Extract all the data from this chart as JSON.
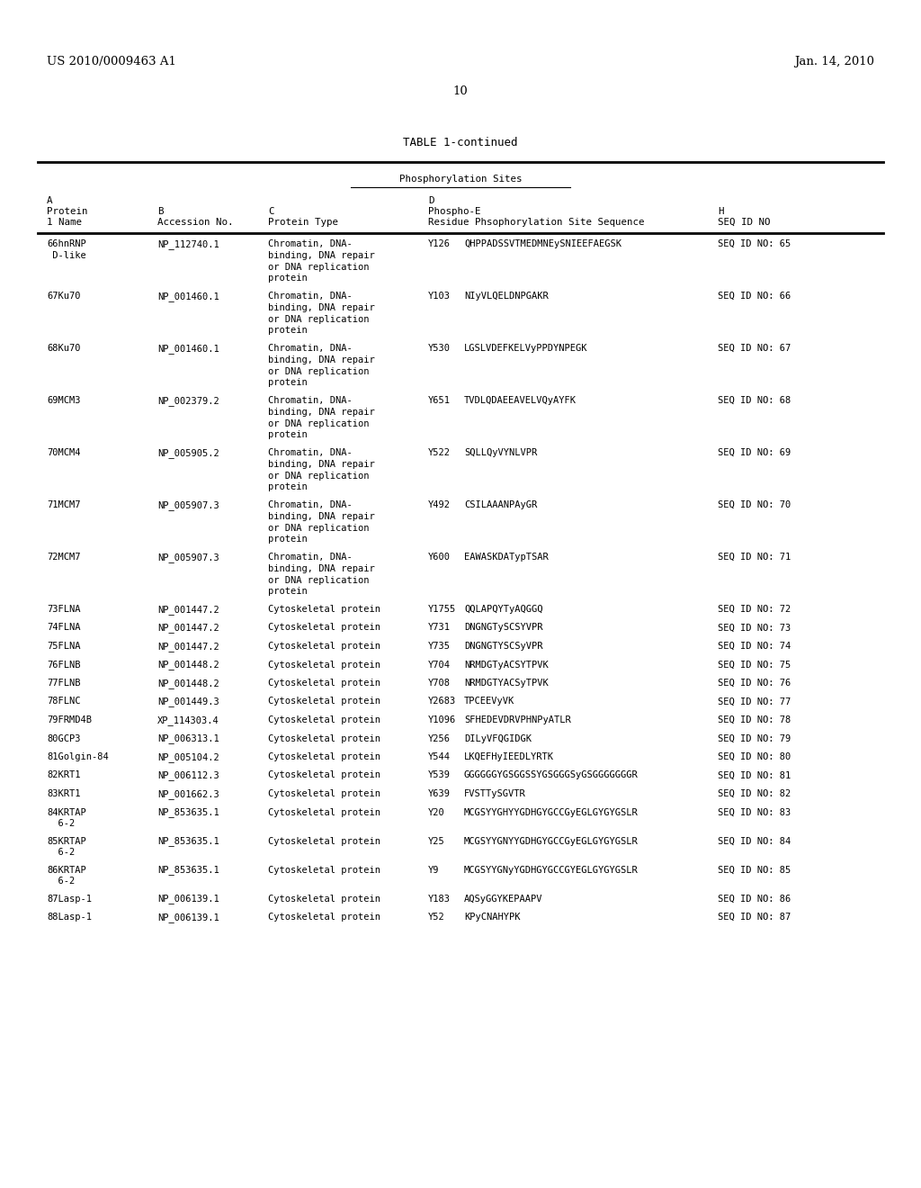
{
  "header_left": "US 2010/0009463 A1",
  "header_right": "Jan. 14, 2010",
  "page_number": "10",
  "table_title": "TABLE 1-continued",
  "table_subtitle": "Phosphorylation Sites",
  "bg_color": "#ffffff",
  "rows": [
    {
      "name": "66hnRNP\n D-like",
      "acc": "NP_112740.1",
      "type": "Chromatin, DNA-\nbinding, DNA repair\nor DNA replication\nprotein",
      "res": "Y126",
      "seq": "QHPPADSSVTMEDMNEySNIEEFAEGSK",
      "seqid": "SEQ ID NO: 65",
      "multiline": true
    },
    {
      "name": "67Ku70",
      "acc": "NP_001460.1",
      "type": "Chromatin, DNA-\nbinding, DNA repair\nor DNA replication\nprotein",
      "res": "Y103",
      "seq": "NIyVLQELDNPGAKR",
      "seqid": "SEQ ID NO: 66",
      "multiline": true
    },
    {
      "name": "68Ku70",
      "acc": "NP_001460.1",
      "type": "Chromatin, DNA-\nbinding, DNA repair\nor DNA replication\nprotein",
      "res": "Y530",
      "seq": "LGSLVDEFKELVyPPDYNPEGK",
      "seqid": "SEQ ID NO: 67",
      "multiline": true
    },
    {
      "name": "69MCM3",
      "acc": "NP_002379.2",
      "type": "Chromatin, DNA-\nbinding, DNA repair\nor DNA replication\nprotein",
      "res": "Y651",
      "seq": "TVDLQDAEEAVELVQyAYFK",
      "seqid": "SEQ ID NO: 68",
      "multiline": true
    },
    {
      "name": "70MCM4",
      "acc": "NP_005905.2",
      "type": "Chromatin, DNA-\nbinding, DNA repair\nor DNA replication\nprotein",
      "res": "Y522",
      "seq": "SQLLQyVYNLVPR",
      "seqid": "SEQ ID NO: 69",
      "multiline": true
    },
    {
      "name": "71MCM7",
      "acc": "NP_005907.3",
      "type": "Chromatin, DNA-\nbinding, DNA repair\nor DNA replication\nprotein",
      "res": "Y492",
      "seq": "CSILAAANPAyGR",
      "seqid": "SEQ ID NO: 70",
      "multiline": true
    },
    {
      "name": "72MCM7",
      "acc": "NP_005907.3",
      "type": "Chromatin, DNA-\nbinding, DNA repair\nor DNA replication\nprotein",
      "res": "Y600",
      "seq": "EAWASKDATypTSAR",
      "seqid": "SEQ ID NO: 71",
      "multiline": true
    },
    {
      "name": "73FLNA",
      "acc": "NP_001447.2",
      "type": "Cytoskeletal protein",
      "res": "Y1755",
      "seq": "QQLAPQYTyAQGGQ",
      "seqid": "SEQ ID NO: 72",
      "multiline": false
    },
    {
      "name": "74FLNA",
      "acc": "NP_001447.2",
      "type": "Cytoskeletal protein",
      "res": "Y731",
      "seq": "DNGNGTySCSYVPR",
      "seqid": "SEQ ID NO: 73",
      "multiline": false
    },
    {
      "name": "75FLNA",
      "acc": "NP_001447.2",
      "type": "Cytoskeletal protein",
      "res": "Y735",
      "seq": "DNGNGTYSCSyVPR",
      "seqid": "SEQ ID NO: 74",
      "multiline": false
    },
    {
      "name": "76FLNB",
      "acc": "NP_001448.2",
      "type": "Cytoskeletal protein",
      "res": "Y704",
      "seq": "NRMDGTyACSYTPVK",
      "seqid": "SEQ ID NO: 75",
      "multiline": false
    },
    {
      "name": "77FLNB",
      "acc": "NP_001448.2",
      "type": "Cytoskeletal protein",
      "res": "Y708",
      "seq": "NRMDGTYACSyTPVK",
      "seqid": "SEQ ID NO: 76",
      "multiline": false
    },
    {
      "name": "78FLNC",
      "acc": "NP_001449.3",
      "type": "Cytoskeletal protein",
      "res": "Y2683",
      "seq": "TPCEEVyVK",
      "seqid": "SEQ ID NO: 77",
      "multiline": false
    },
    {
      "name": "79FRMD4B",
      "acc": "XP_114303.4",
      "type": "Cytoskeletal protein",
      "res": "Y1096",
      "seq": "SFHEDEVDRVPHNPyATLR",
      "seqid": "SEQ ID NO: 78",
      "multiline": false
    },
    {
      "name": "80GCP3",
      "acc": "NP_006313.1",
      "type": "Cytoskeletal protein",
      "res": "Y256",
      "seq": "DILyVFQGIDGK",
      "seqid": "SEQ ID NO: 79",
      "multiline": false
    },
    {
      "name": "81Golgin-84",
      "acc": "NP_005104.2",
      "type": "Cytoskeletal protein",
      "res": "Y544",
      "seq": "LKQEFHyIEEDLYRTK",
      "seqid": "SEQ ID NO: 80",
      "multiline": false
    },
    {
      "name": "82KRT1",
      "acc": "NP_006112.3",
      "type": "Cytoskeletal protein",
      "res": "Y539",
      "seq": "GGGGGGYGSGGSSYGSGGGSyGSGGGGGGGR",
      "seqid": "SEQ ID NO: 81",
      "multiline": false
    },
    {
      "name": "83KRT1",
      "acc": "NP_001662.3",
      "type": "Cytoskeletal protein",
      "res": "Y639",
      "seq": "FVSTTySGVTR",
      "seqid": "SEQ ID NO: 82",
      "multiline": false
    },
    {
      "name": "84KRTAP\n  6-2",
      "acc": "NP_853635.1",
      "type": "Cytoskeletal protein",
      "res": "Y20",
      "seq": "MCGSYYGHYYGDHGYGCCGyEGLGYGYGSLR",
      "seqid": "SEQ ID NO: 83",
      "multiline": false
    },
    {
      "name": "85KRTAP\n  6-2",
      "acc": "NP_853635.1",
      "type": "Cytoskeletal protein",
      "res": "Y25",
      "seq": "MCGSYYGNYYGDHGYGCCGyEGLGYGYGSLR",
      "seqid": "SEQ ID NO: 84",
      "multiline": false
    },
    {
      "name": "86KRTAP\n  6-2",
      "acc": "NP_853635.1",
      "type": "Cytoskeletal protein",
      "res": "Y9",
      "seq": "MCGSYYGNyYGDHGYGCCGYEGLGYGYGSLR",
      "seqid": "SEQ ID NO: 85",
      "multiline": false
    },
    {
      "name": "87Lasp-1",
      "acc": "NP_006139.1",
      "type": "Cytoskeletal protein",
      "res": "Y183",
      "seq": "AQSyGGYKEPAAPV",
      "seqid": "SEQ ID NO: 86",
      "multiline": false
    },
    {
      "name": "88Lasp-1",
      "acc": "NP_006139.1",
      "type": "Cytoskeletal protein",
      "res": "Y52",
      "seq": "KPyCNAHYPK",
      "seqid": "SEQ ID NO: 87",
      "multiline": false
    }
  ]
}
